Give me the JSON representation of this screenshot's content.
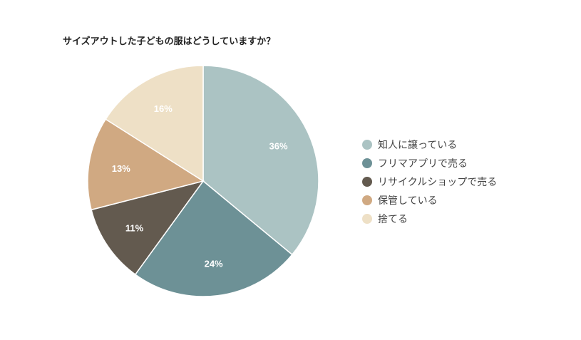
{
  "chart_data": {
    "type": "pie",
    "title": "サイズアウトした子どもの服はどうしていますか？",
    "categories": [
      "知人に譲っている",
      "フリマアプリで売る",
      "リサイクルショップで売る",
      "保管している",
      "捨てる"
    ],
    "values": [
      36,
      24,
      11,
      13,
      16
    ],
    "labels": [
      "36%",
      "24%",
      "11%",
      "13%",
      "16%"
    ],
    "colors": [
      "#abc3c3",
      "#6d9196",
      "#635a4f",
      "#d0a982",
      "#eee0c6"
    ],
    "legend_position": "right",
    "start_angle": "top, clockwise"
  }
}
